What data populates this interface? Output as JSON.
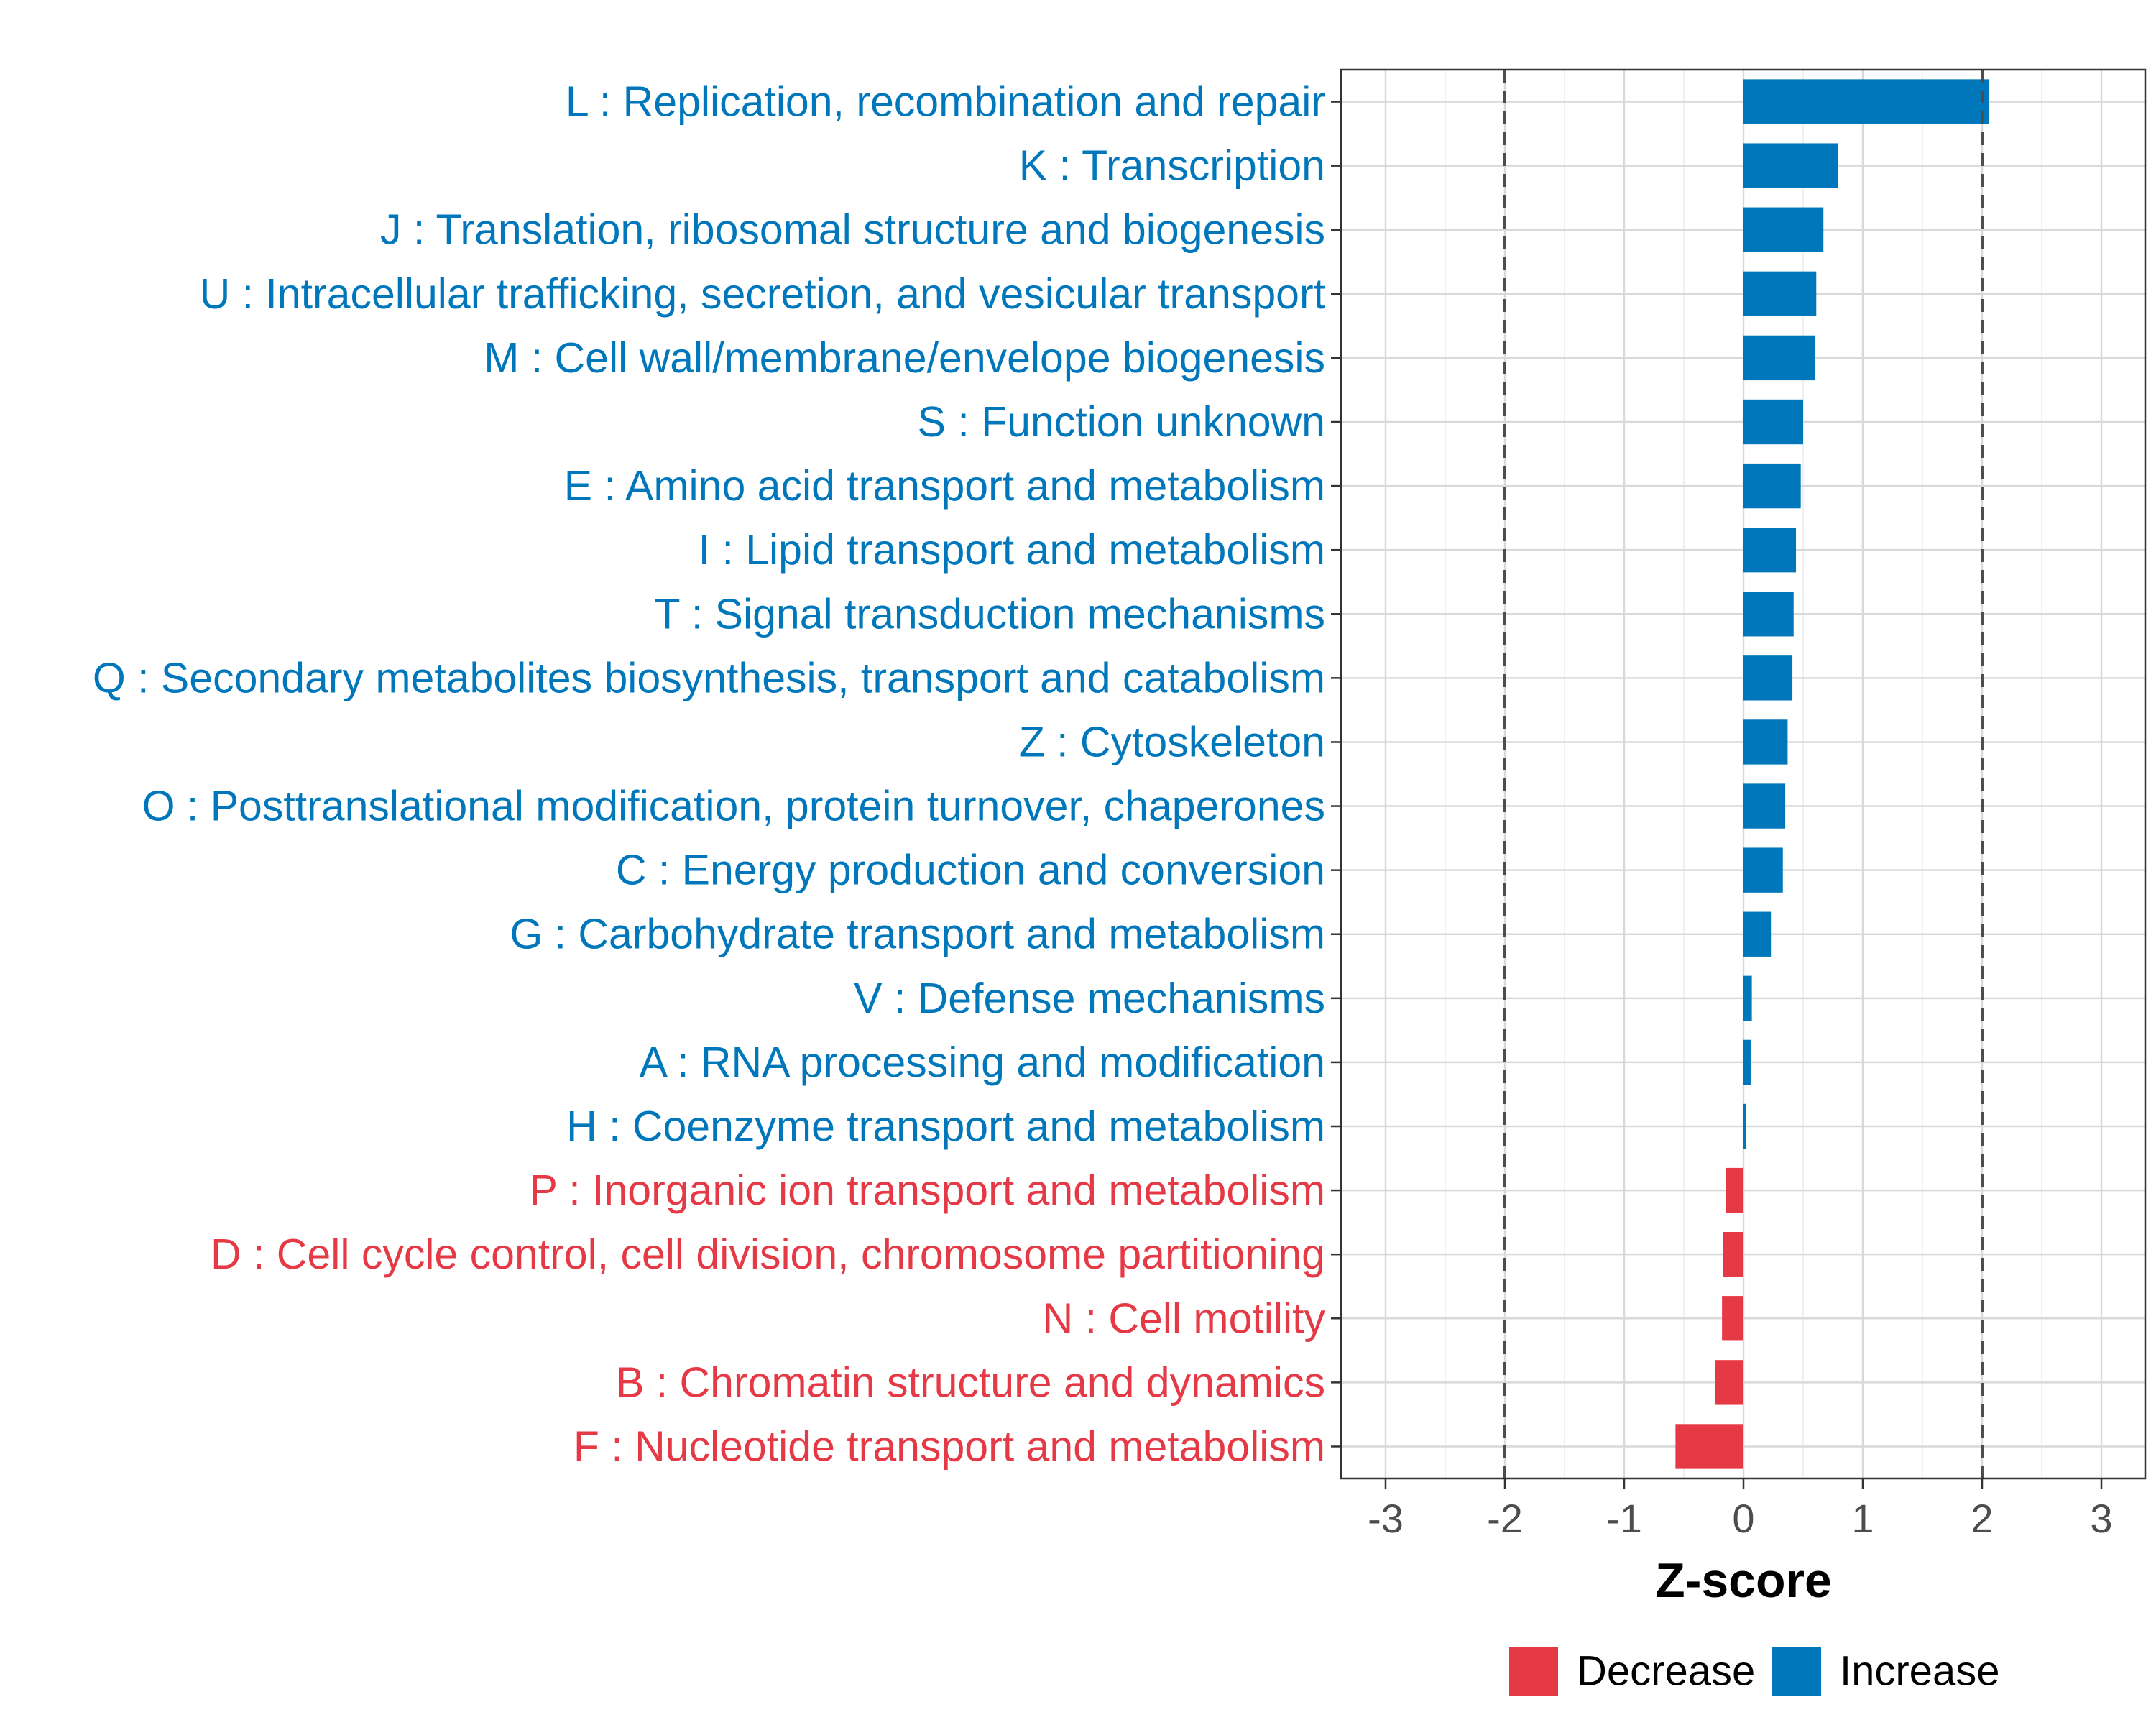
{
  "chart_data": {
    "type": "bar",
    "orientation": "horizontal",
    "xlabel": "Z-score",
    "xlim": [
      -3.3,
      3.3
    ],
    "xticks": [
      -3,
      -2,
      -1,
      0,
      1,
      2,
      3
    ],
    "tick_labels": [
      "-3",
      "-2",
      "-1",
      "0",
      "1",
      "2",
      "3"
    ],
    "reference_lines": [
      -2,
      2
    ],
    "grid": true,
    "colors": {
      "Decrease": "#e63946",
      "Increase": "#0077bb"
    },
    "categories": [
      "L : Replication, recombination and repair",
      "K : Transcription",
      "J : Translation, ribosomal structure and biogenesis",
      "U : Intracellular trafficking, secretion, and vesicular transport",
      "M : Cell wall/membrane/envelope biogenesis",
      "S : Function unknown",
      "E : Amino acid transport and metabolism",
      "I : Lipid transport and metabolism",
      "T : Signal transduction mechanisms",
      "Q : Secondary metabolites biosynthesis, transport and catabolism",
      "Z : Cytoskeleton",
      "O : Posttranslational modification, protein turnover, chaperones",
      "C : Energy production and conversion",
      "G : Carbohydrate transport and metabolism",
      "V : Defense mechanisms",
      "A : RNA processing and modification",
      "H : Coenzyme transport and metabolism",
      "P : Inorganic ion transport and metabolism",
      "D : Cell cycle control, cell division, chromosome partitioning",
      "N : Cell motility",
      "B : Chromatin structure and dynamics",
      "F : Nucleotide transport and metabolism"
    ],
    "values": [
      2.06,
      0.79,
      0.67,
      0.61,
      0.6,
      0.5,
      0.48,
      0.44,
      0.42,
      0.41,
      0.37,
      0.35,
      0.33,
      0.23,
      0.07,
      0.06,
      0.02,
      -0.15,
      -0.17,
      -0.18,
      -0.24,
      -0.57
    ],
    "groups": [
      "Increase",
      "Increase",
      "Increase",
      "Increase",
      "Increase",
      "Increase",
      "Increase",
      "Increase",
      "Increase",
      "Increase",
      "Increase",
      "Increase",
      "Increase",
      "Increase",
      "Increase",
      "Increase",
      "Increase",
      "Decrease",
      "Decrease",
      "Decrease",
      "Decrease",
      "Decrease"
    ],
    "legend": {
      "position": "bottom",
      "entries": [
        {
          "label": "Decrease",
          "color": "#e63946"
        },
        {
          "label": "Increase",
          "color": "#0077bb"
        }
      ]
    }
  }
}
